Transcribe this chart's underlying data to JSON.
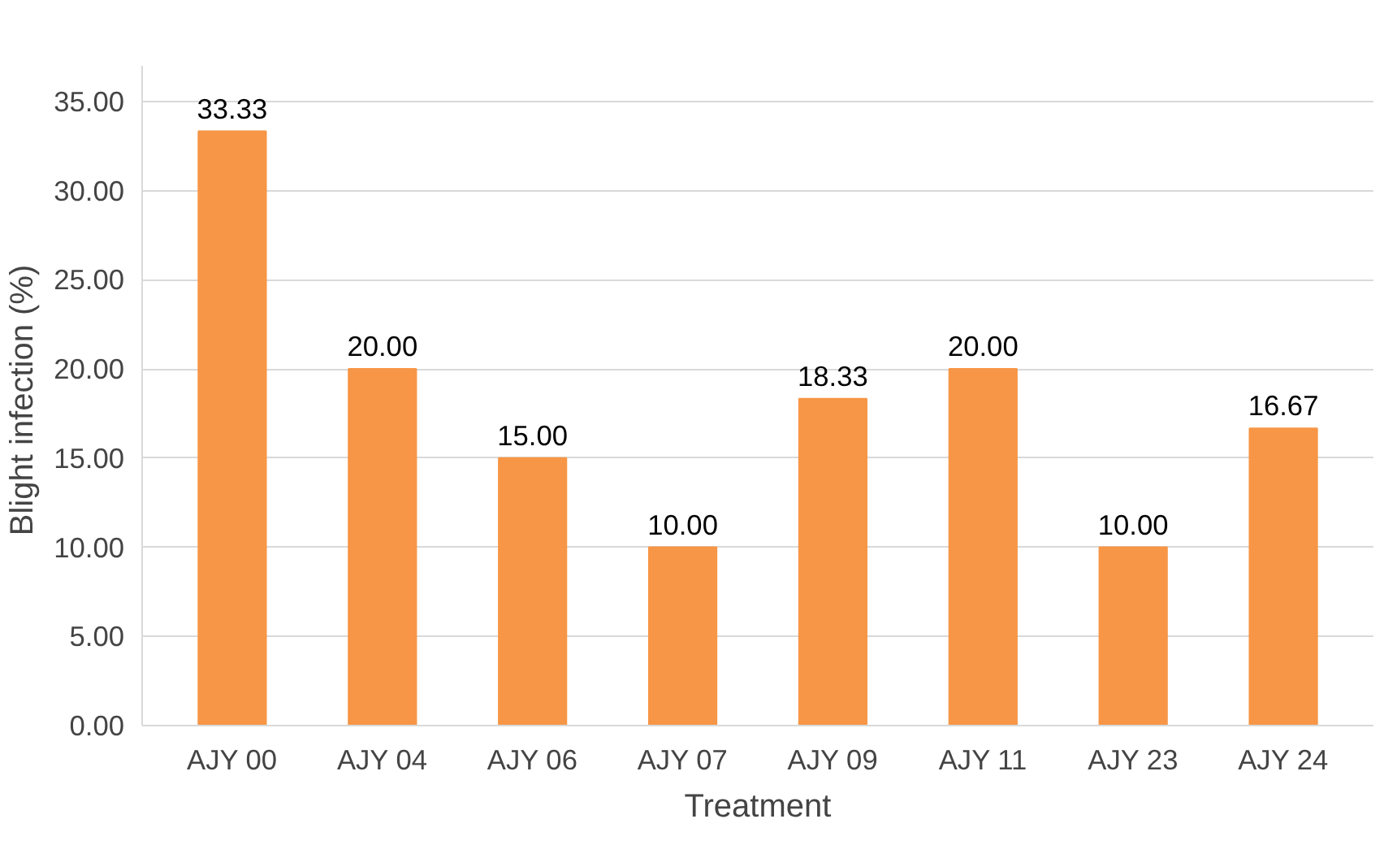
{
  "chart_data": {
    "type": "bar",
    "xlabel": "Treatment",
    "ylabel": "Blight infection  (%)",
    "categories": [
      "AJY 00",
      "AJY 04",
      "AJY 06",
      "AJY 07",
      "AJY 09",
      "AJY 11",
      "AJY 23",
      "AJY 24"
    ],
    "values": [
      33.33,
      20.0,
      15.0,
      10.0,
      18.33,
      20.0,
      10.0,
      16.67
    ],
    "value_labels": [
      "33.33",
      "20.00",
      "15.00",
      "10.00",
      "18.33",
      "20.00",
      "10.00",
      "16.67"
    ],
    "color": "#f79646",
    "ylim": [
      0,
      37
    ],
    "yticks": [
      {
        "value": 0,
        "label": "0.00"
      },
      {
        "value": 5,
        "label": "5.00"
      },
      {
        "value": 10,
        "label": "10.00"
      },
      {
        "value": 15,
        "label": "15.00"
      },
      {
        "value": 20,
        "label": "20.00"
      },
      {
        "value": 25,
        "label": "25.00"
      },
      {
        "value": 30,
        "label": "30.00"
      },
      {
        "value": 35,
        "label": "35.00"
      }
    ],
    "grid": "y"
  }
}
